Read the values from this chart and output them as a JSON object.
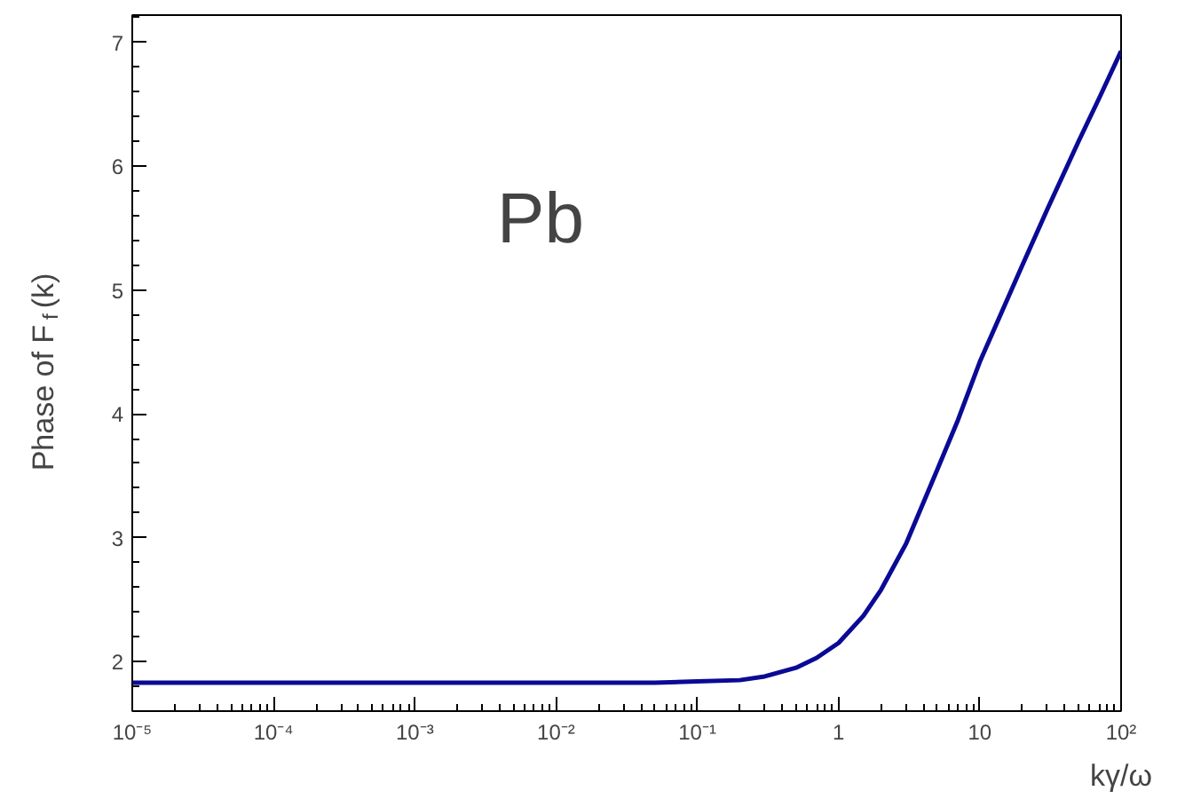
{
  "chart_data": {
    "type": "line",
    "xlabel": "kγ/ω",
    "ylabel": "Phase of F$_{f}$(k)",
    "log": "x",
    "grid": false,
    "marker": "none",
    "line_style": "solid",
    "annotations": [
      "Pb"
    ],
    "xlim": [
      1e-05,
      100
    ],
    "ylim": [
      1.6,
      7.22
    ],
    "xticks": [
      {
        "value": 1e-05,
        "label": "10⁻⁵"
      },
      {
        "value": 0.0001,
        "label": "10⁻⁴"
      },
      {
        "value": 0.001,
        "label": "10⁻³"
      },
      {
        "value": 0.01,
        "label": "10⁻²"
      },
      {
        "value": 0.1,
        "label": "10⁻¹"
      },
      1,
      10,
      {
        "value": 100,
        "label": "10²"
      }
    ],
    "yticks": [
      2,
      3,
      4,
      5,
      6,
      7
    ],
    "x": [
      1e-05,
      0.0001,
      0.001,
      0.01,
      0.05,
      0.1,
      0.2,
      0.3,
      0.5,
      0.7,
      1,
      1.5,
      2,
      3,
      5,
      7,
      10,
      20,
      30,
      50,
      70,
      100
    ],
    "series": [
      {
        "color": "#0a0a96",
        "values": [
          1.83,
          1.83,
          1.83,
          1.83,
          1.83,
          1.84,
          1.85,
          1.88,
          1.95,
          2.03,
          2.15,
          2.37,
          2.58,
          2.95,
          3.55,
          3.95,
          4.42,
          5.2,
          5.65,
          6.2,
          6.55,
          6.93
        ]
      }
    ]
  }
}
